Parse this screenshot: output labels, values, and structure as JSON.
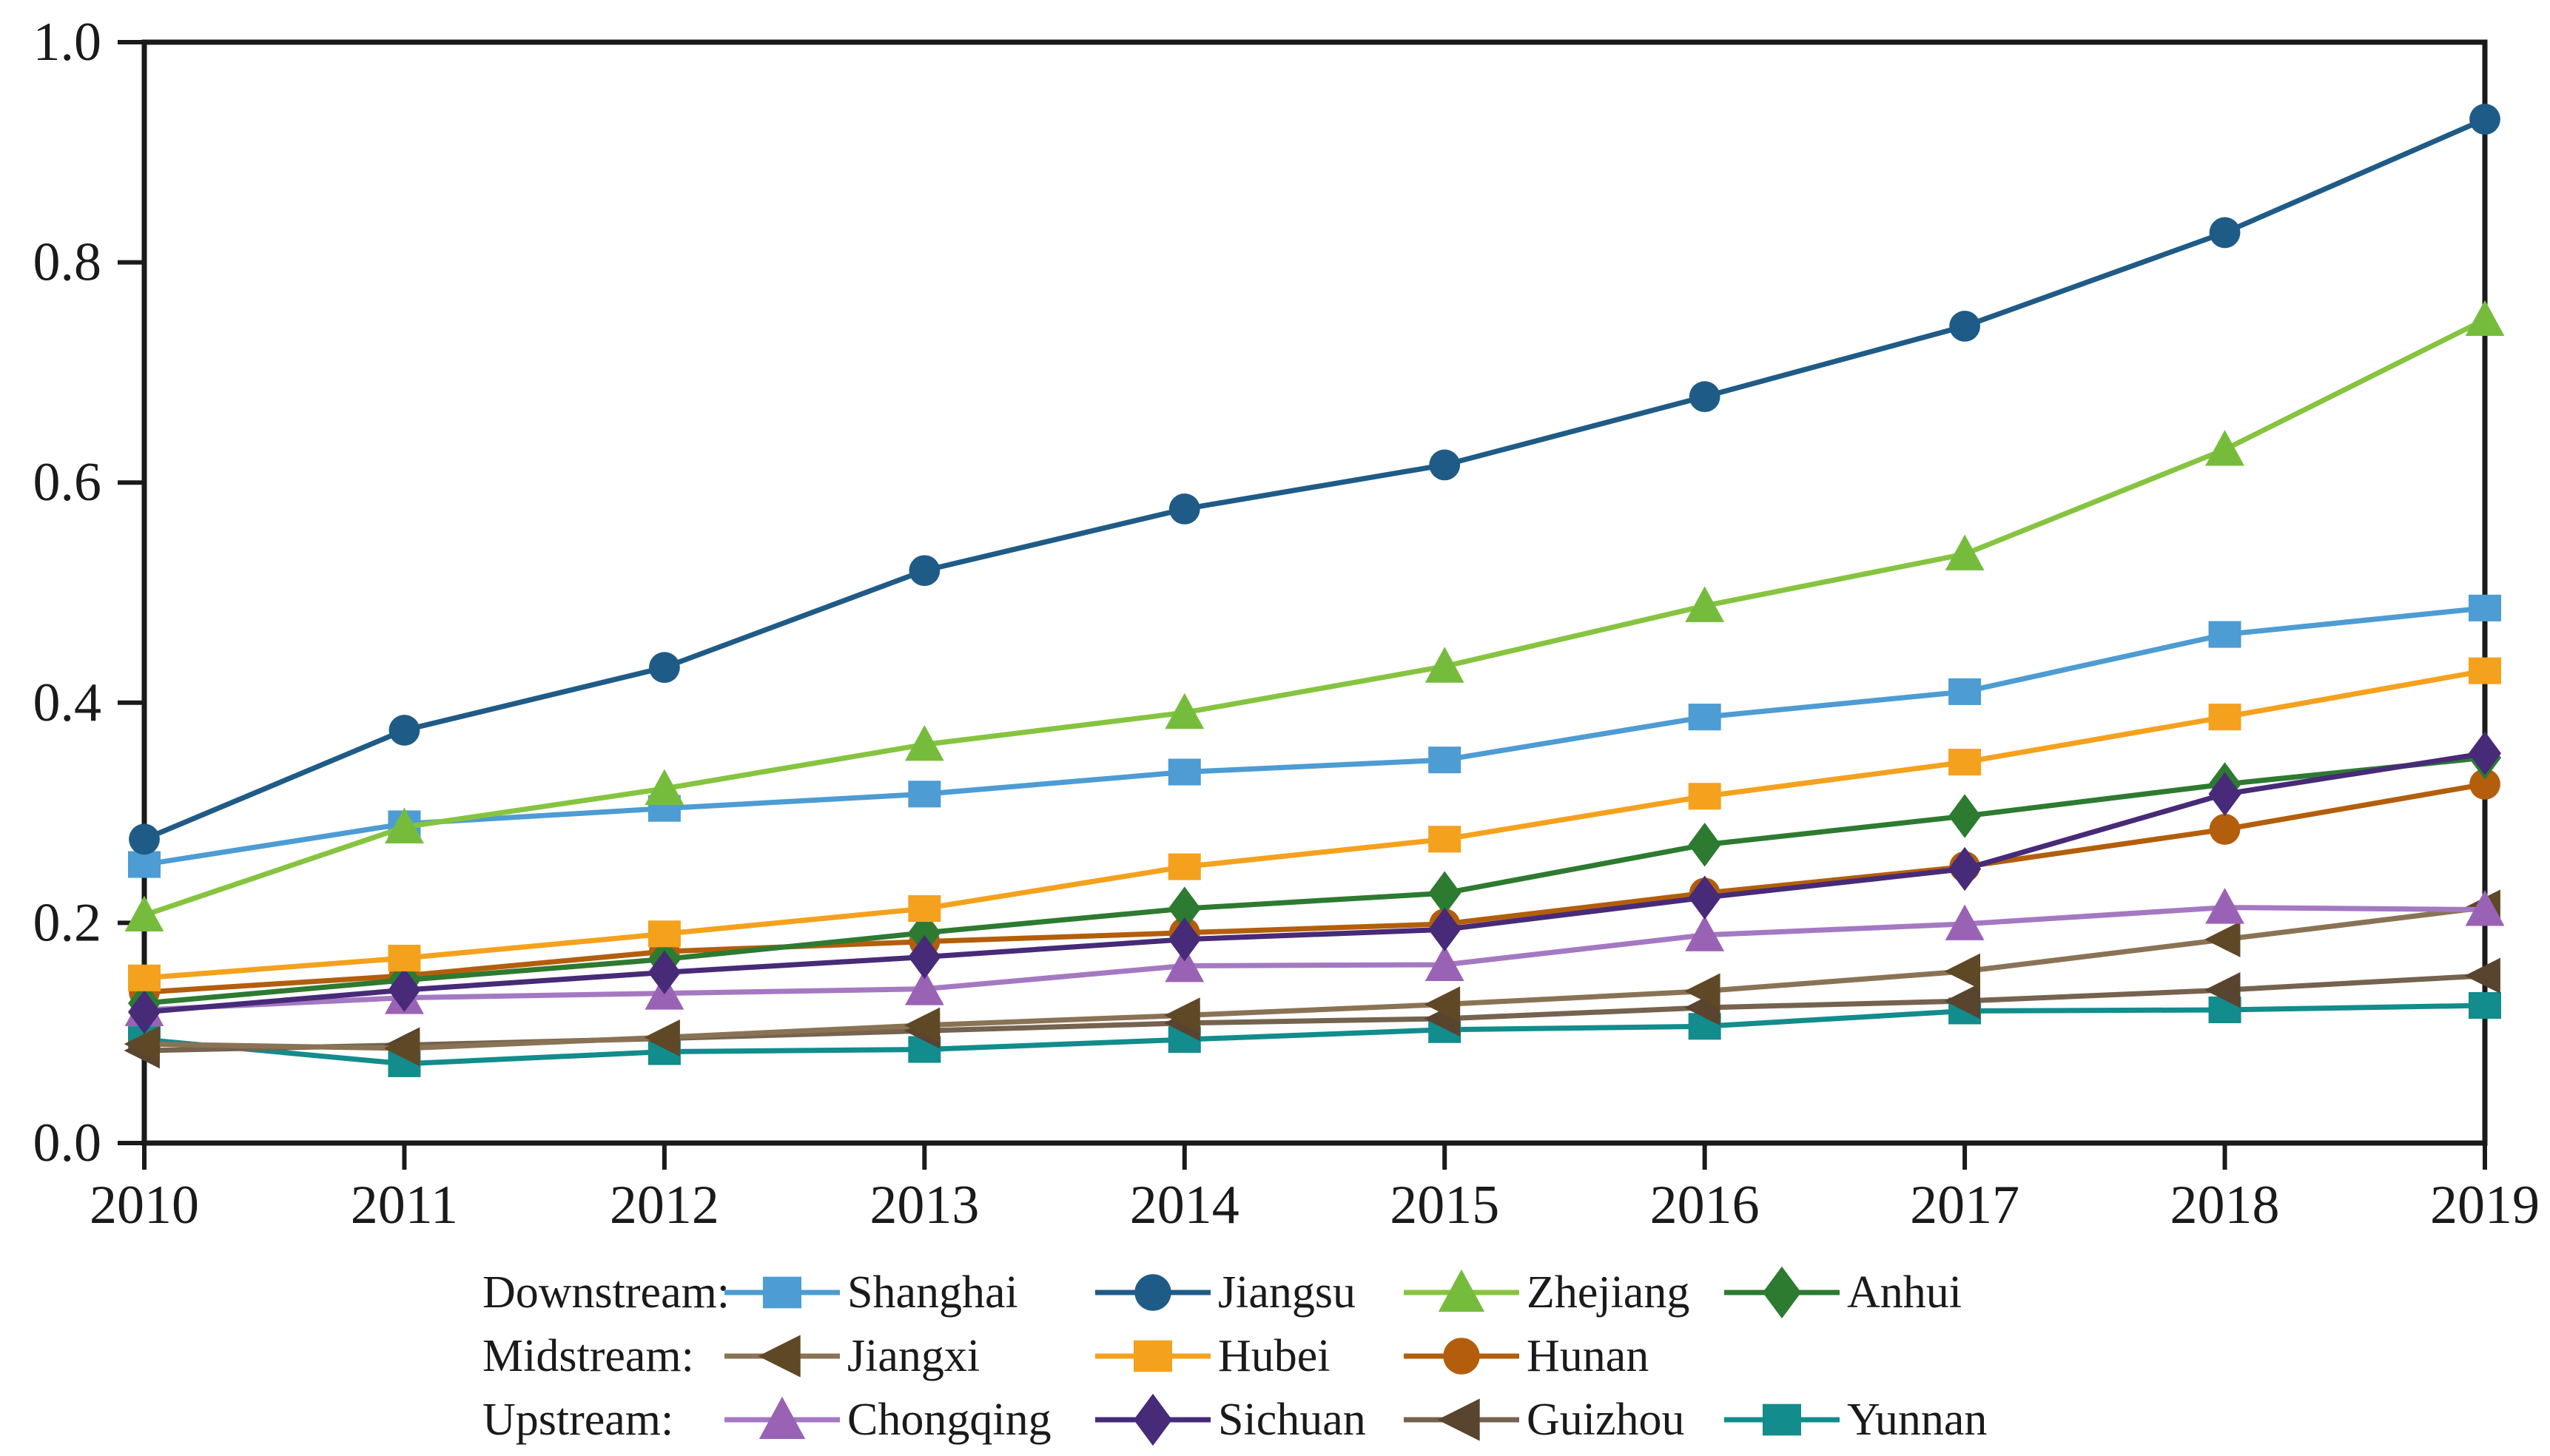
{
  "page": {
    "background": "#ffffff",
    "axis_color": "#1a1a1a"
  },
  "chart_data": {
    "type": "line",
    "title": "",
    "xlabel": "",
    "ylabel": "",
    "x": [
      2010,
      2011,
      2012,
      2013,
      2014,
      2015,
      2016,
      2017,
      2018,
      2019
    ],
    "xtick_labels": [
      "2010",
      "2011",
      "2012",
      "2013",
      "2014",
      "2015",
      "2016",
      "2017",
      "2018",
      "2019"
    ],
    "ylim": [
      0.0,
      1.0
    ],
    "yticks": [
      "0.0",
      "0.2",
      "0.4",
      "0.6",
      "0.8",
      "1.0"
    ],
    "grid": false,
    "legend_position": "bottom",
    "groups": [
      {
        "label": "Downstream:",
        "items": [
          "Shanghai",
          "Jiangsu",
          "Zhejiang",
          "Anhui"
        ]
      },
      {
        "label": "Midstream:",
        "items": [
          "Jiangxi",
          "Hubei",
          "Hunan"
        ]
      },
      {
        "label": "Upstream:",
        "items": [
          "Chongqing",
          "Sichuan",
          "Guizhou",
          "Yunnan"
        ]
      }
    ],
    "series": [
      {
        "name": "Shanghai",
        "group": "Downstream",
        "marker": "square",
        "color": "#4D9CD3",
        "line_color": "#4D9CD3",
        "values": [
          0.253,
          0.29,
          0.304,
          0.317,
          0.337,
          0.348,
          0.387,
          0.41,
          0.462,
          0.486
        ]
      },
      {
        "name": "Jiangsu",
        "group": "Downstream",
        "marker": "circle",
        "color": "#1F5B87",
        "line_color": "#1F5B87",
        "values": [
          0.276,
          0.375,
          0.432,
          0.52,
          0.576,
          0.616,
          0.678,
          0.742,
          0.827,
          0.93
        ]
      },
      {
        "name": "Zhejiang",
        "group": "Downstream",
        "marker": "triangle-up",
        "color": "#76BC3C",
        "line_color": "#86C440",
        "values": [
          0.207,
          0.287,
          0.322,
          0.362,
          0.391,
          0.433,
          0.488,
          0.535,
          0.63,
          0.748
        ]
      },
      {
        "name": "Anhui",
        "group": "Downstream",
        "marker": "diamond",
        "color": "#2D7A31",
        "line_color": "#2D7A31",
        "values": [
          0.127,
          0.148,
          0.167,
          0.191,
          0.213,
          0.227,
          0.271,
          0.297,
          0.326,
          0.35
        ]
      },
      {
        "name": "Jiangxi",
        "group": "Midstream",
        "marker": "triangle-left",
        "color": "#5F4826",
        "line_color": "#8A7355",
        "values": [
          0.09,
          0.086,
          0.096,
          0.107,
          0.116,
          0.126,
          0.138,
          0.156,
          0.185,
          0.214
        ]
      },
      {
        "name": "Hubei",
        "group": "Midstream",
        "marker": "square",
        "color": "#F4A11D",
        "line_color": "#F4A11D",
        "values": [
          0.15,
          0.168,
          0.19,
          0.213,
          0.251,
          0.276,
          0.315,
          0.346,
          0.387,
          0.429
        ]
      },
      {
        "name": "Hunan",
        "group": "Midstream",
        "marker": "circle",
        "color": "#B35E0C",
        "line_color": "#B35E0C",
        "values": [
          0.137,
          0.152,
          0.174,
          0.183,
          0.191,
          0.199,
          0.227,
          0.251,
          0.285,
          0.326
        ]
      },
      {
        "name": "Chongqing",
        "group": "Upstream",
        "marker": "triangle-up",
        "color": "#9A62B5",
        "line_color": "#A578C2",
        "values": [
          0.121,
          0.132,
          0.136,
          0.14,
          0.161,
          0.162,
          0.189,
          0.199,
          0.214,
          0.212
        ]
      },
      {
        "name": "Sichuan",
        "group": "Upstream",
        "marker": "diamond",
        "color": "#472A78",
        "line_color": "#472A78",
        "values": [
          0.119,
          0.139,
          0.155,
          0.169,
          0.185,
          0.194,
          0.223,
          0.249,
          0.317,
          0.354
        ]
      },
      {
        "name": "Guizhou",
        "group": "Upstream",
        "marker": "triangle-left",
        "color": "#594430",
        "line_color": "#75634F",
        "values": [
          0.084,
          0.089,
          0.095,
          0.102,
          0.109,
          0.113,
          0.123,
          0.129,
          0.139,
          0.152
        ]
      },
      {
        "name": "Yunnan",
        "group": "Upstream",
        "marker": "square",
        "color": "#128C8C",
        "line_color": "#128C8C",
        "values": [
          0.094,
          0.072,
          0.083,
          0.085,
          0.094,
          0.103,
          0.106,
          0.12,
          0.121,
          0.125
        ]
      }
    ]
  }
}
